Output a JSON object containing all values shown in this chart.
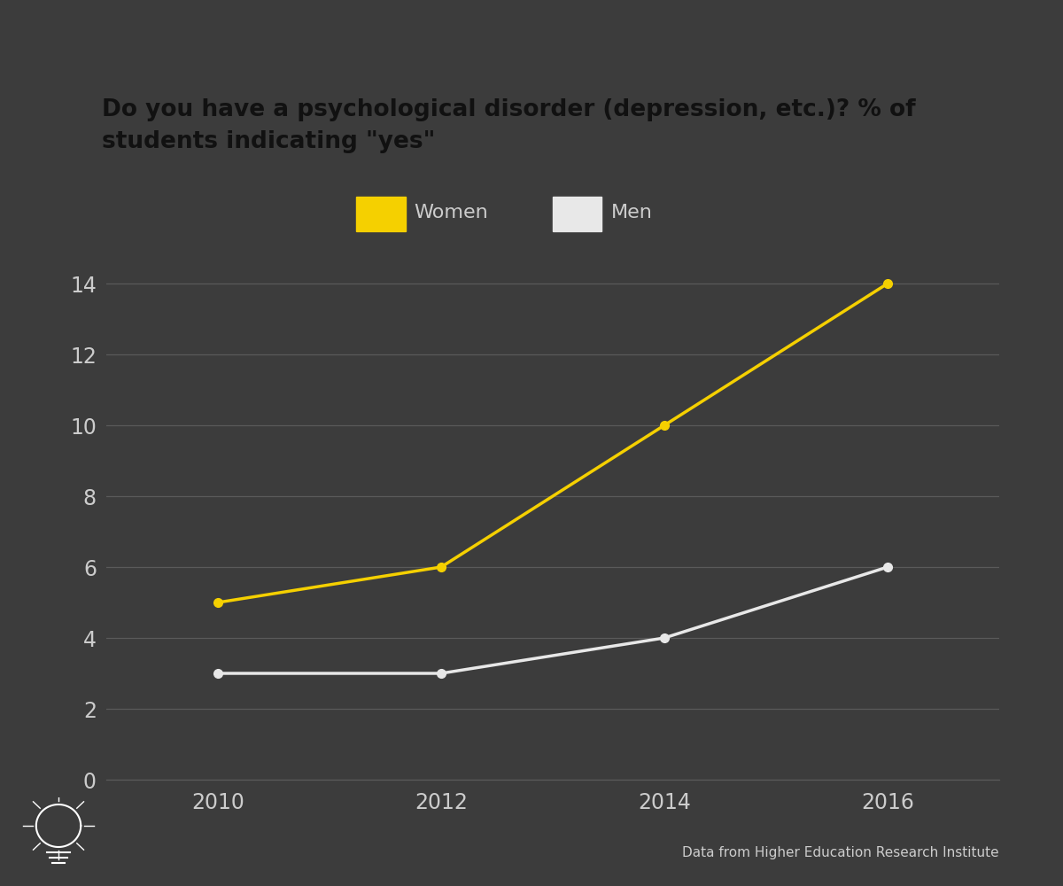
{
  "title_line1": "Do you have a psychological disorder (depression, etc.)? % of",
  "title_line2": "students indicating \"yes\"",
  "background_color": "#3c3c3c",
  "title_bg_color": "#f5d000",
  "title_text_color": "#111111",
  "years": [
    2010,
    2012,
    2014,
    2016
  ],
  "women_values": [
    5,
    6,
    10,
    14
  ],
  "men_values": [
    3,
    3,
    4,
    6
  ],
  "women_color": "#f5d000",
  "men_color": "#e8e8e8",
  "grid_color": "#5a5a5a",
  "tick_color": "#cccccc",
  "legend_labels": [
    "Women",
    "Men"
  ],
  "ylim": [
    0,
    15
  ],
  "yticks": [
    0,
    2,
    4,
    6,
    8,
    10,
    12,
    14
  ],
  "source_text": "Data from Higher Education Research Institute",
  "line_width": 2.5,
  "marker_size": 7
}
